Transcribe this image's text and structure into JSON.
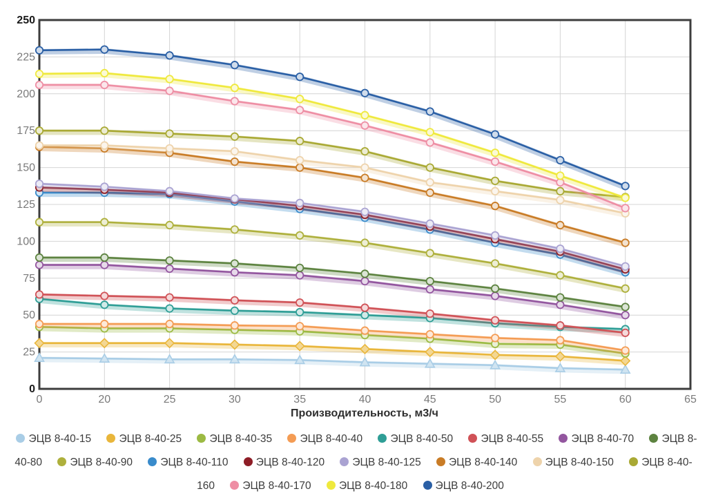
{
  "chart_data": {
    "type": "line",
    "title": "",
    "xlabel": "Производительность, м3/ч",
    "ylabel": "",
    "ylim": [
      0,
      250
    ],
    "y_tick_step": 25,
    "grid": true,
    "legend_position": "bottom",
    "x_ticks": [
      "0",
      "20",
      "25",
      "30",
      "35",
      "40",
      "45",
      "50",
      "55",
      "60",
      "65"
    ],
    "y_ticks": [
      "0",
      "25",
      "50",
      "75",
      "100",
      "125",
      "150",
      "175",
      "200",
      "225",
      "250"
    ],
    "categories": [
      0,
      20,
      25,
      30,
      35,
      40,
      45,
      50,
      55,
      60
    ],
    "series": [
      {
        "name": "ЭЦВ 8-40-15",
        "color": "#a9cde6",
        "marker": "triangle",
        "values": [
          21,
          20.5,
          20,
          20,
          19.5,
          18,
          17,
          16,
          14,
          13
        ]
      },
      {
        "name": "ЭЦВ 8-40-25",
        "color": "#e9b63b",
        "marker": "diamond",
        "values": [
          31,
          31,
          31,
          30,
          29,
          27,
          25,
          23,
          22,
          19
        ]
      },
      {
        "name": "ЭЦВ 8-40-35",
        "color": "#9cba43",
        "marker": "circle",
        "values": [
          42,
          41,
          41,
          40,
          39,
          36.5,
          34,
          30.5,
          30,
          24
        ]
      },
      {
        "name": "ЭЦВ 8-40-40",
        "color": "#f49c54",
        "marker": "circle",
        "values": [
          44,
          44,
          44,
          43,
          42.5,
          39.5,
          37,
          34.5,
          33,
          26
        ]
      },
      {
        "name": "ЭЦВ 8-40-50",
        "color": "#2f9e96",
        "marker": "circle",
        "values": [
          61,
          57,
          54.5,
          53,
          52,
          50,
          48,
          44.5,
          42,
          40.5
        ]
      },
      {
        "name": "ЭЦВ 8-40-55",
        "color": "#d05257",
        "marker": "circle",
        "values": [
          64,
          63,
          62,
          60,
          58.5,
          55,
          51,
          46.5,
          43,
          38
        ]
      },
      {
        "name": "ЭЦВ 8-40-70",
        "color": "#93569f",
        "marker": "circle",
        "values": [
          84,
          84,
          81.5,
          79,
          77,
          73,
          67.5,
          63,
          57,
          50
        ]
      },
      {
        "name": "ЭЦВ 8-40-80",
        "color": "#5d8340",
        "marker": "circle",
        "values": [
          89,
          89,
          87,
          85,
          82,
          78,
          73,
          68,
          62,
          55.5
        ]
      },
      {
        "name": "ЭЦВ 8-40-90",
        "color": "#aeb03c",
        "marker": "circle",
        "values": [
          113,
          113,
          111,
          108,
          104,
          99,
          92,
          85,
          77,
          68
        ]
      },
      {
        "name": "ЭЦВ 8-40-110",
        "color": "#398bcb",
        "marker": "circle",
        "values": [
          133,
          133,
          132,
          127,
          122,
          116,
          108,
          99,
          91,
          79
        ]
      },
      {
        "name": "ЭЦВ 8-40-120",
        "color": "#8e1d26",
        "marker": "circle",
        "values": [
          136.5,
          135,
          133,
          128.5,
          124,
          118,
          110,
          101.5,
          93,
          81
        ]
      },
      {
        "name": "ЭЦВ 8-40-125",
        "color": "#aaa3d2",
        "marker": "circle",
        "values": [
          139,
          137,
          134,
          129,
          126,
          120,
          112,
          104,
          95,
          83
        ]
      },
      {
        "name": "ЭЦВ 8-40-140",
        "color": "#c97c26",
        "marker": "circle",
        "values": [
          164,
          163,
          160,
          154,
          150,
          143,
          133,
          124,
          111,
          99
        ]
      },
      {
        "name": "ЭЦВ 8-40-150",
        "color": "#eed3ab",
        "marker": "circle",
        "values": [
          165,
          165,
          163,
          161,
          155,
          150,
          140,
          134,
          128,
          119
        ]
      },
      {
        "name": "ЭЦВ 8-40-160",
        "color": "#a9a934",
        "marker": "circle",
        "values": [
          175,
          175,
          173,
          171,
          168,
          161,
          150,
          141,
          134,
          130
        ]
      },
      {
        "name": "ЭЦВ 8-40-170",
        "color": "#ee8ea4",
        "marker": "circle",
        "values": [
          206,
          206,
          202,
          195,
          189,
          178.5,
          167,
          154,
          140,
          122.5
        ]
      },
      {
        "name": "ЭЦВ 8-40-180",
        "color": "#efe93d",
        "marker": "circle",
        "values": [
          213.5,
          214,
          210,
          204,
          196.5,
          185.5,
          174,
          160,
          144.5,
          129.5
        ]
      },
      {
        "name": "ЭЦВ 8-40-200",
        "color": "#2a5fa5",
        "marker": "circle",
        "values": [
          229.5,
          230,
          226,
          219.5,
          211.5,
          200.5,
          188,
          172.5,
          155,
          137.5
        ]
      }
    ]
  },
  "style_colors": {
    "grid": "#d4d4d4",
    "axis_border": "#3d3d3d",
    "tick_label": "#7a7a7a",
    "tick_label_bold": "#1a1a1a",
    "axis_title": "#2e2e2e",
    "legend_text": "#3c3c3c",
    "background": "#ffffff"
  }
}
